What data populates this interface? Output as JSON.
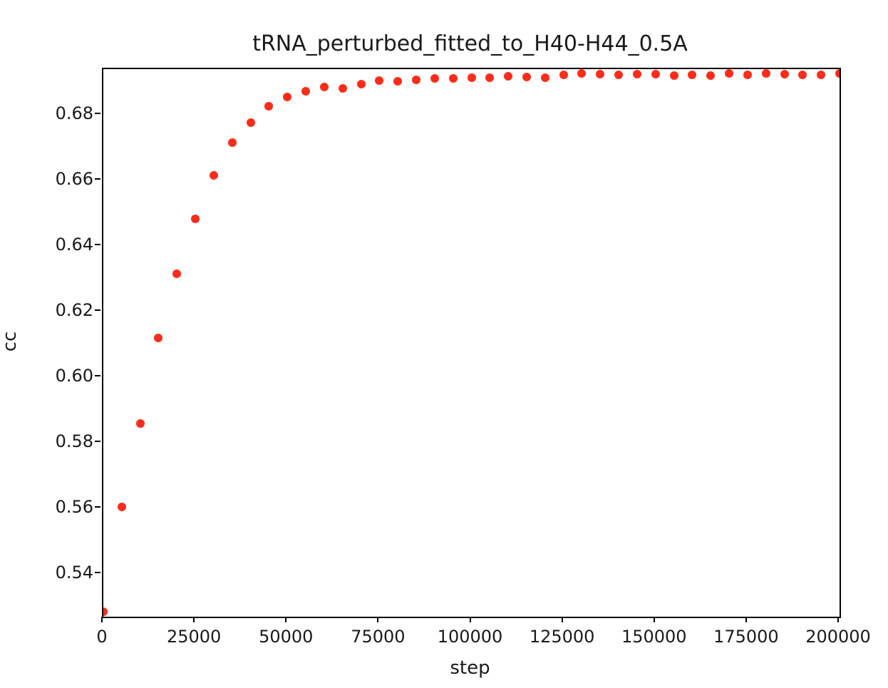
{
  "figure": {
    "background_color": "#ffffff",
    "text_color": "#1a1a1a",
    "spine_color": "#000000"
  },
  "chart_data": {
    "type": "scatter",
    "title": "tRNA_perturbed_fitted_to_H40-H44_0.5A",
    "xlabel": "step",
    "ylabel": "cc",
    "xlim": [
      0,
      200000
    ],
    "ylim": [
      0.527,
      0.694
    ],
    "grid": false,
    "legend_position": "none",
    "marker_color": "#fb2d1a",
    "marker_diameter_px": 12,
    "x_ticks": [
      0,
      25000,
      50000,
      75000,
      100000,
      125000,
      150000,
      175000,
      200000
    ],
    "x_tick_labels": [
      "0",
      "25000",
      "50000",
      "75000",
      "100000",
      "125000",
      "150000",
      "175000",
      "200000"
    ],
    "y_ticks": [
      0.54,
      0.56,
      0.58,
      0.6,
      0.62,
      0.64,
      0.66,
      0.68
    ],
    "y_tick_labels": [
      "0.54",
      "0.56",
      "0.58",
      "0.60",
      "0.62",
      "0.64",
      "0.66",
      "0.68"
    ],
    "series": [
      {
        "name": "cc",
        "x": [
          0,
          5000,
          10000,
          15000,
          20000,
          25000,
          30000,
          35000,
          40000,
          45000,
          50000,
          55000,
          60000,
          65000,
          70000,
          75000,
          80000,
          85000,
          90000,
          95000,
          100000,
          105000,
          110000,
          115000,
          120000,
          125000,
          130000,
          135000,
          140000,
          145000,
          150000,
          155000,
          160000,
          165000,
          170000,
          175000,
          180000,
          185000,
          190000,
          195000,
          200000
        ],
        "y": [
          0.5285,
          0.5605,
          0.586,
          0.612,
          0.6317,
          0.6484,
          0.6617,
          0.6716,
          0.6777,
          0.6827,
          0.6856,
          0.6873,
          0.6886,
          0.6881,
          0.6895,
          0.6905,
          0.6904,
          0.6908,
          0.6912,
          0.6912,
          0.6913,
          0.6913,
          0.6919,
          0.6917,
          0.6913,
          0.6923,
          0.6927,
          0.6925,
          0.6923,
          0.6925,
          0.6925,
          0.6921,
          0.6923,
          0.6921,
          0.6926,
          0.6923,
          0.6927,
          0.6925,
          0.6923,
          0.6923,
          0.6927
        ]
      }
    ]
  }
}
